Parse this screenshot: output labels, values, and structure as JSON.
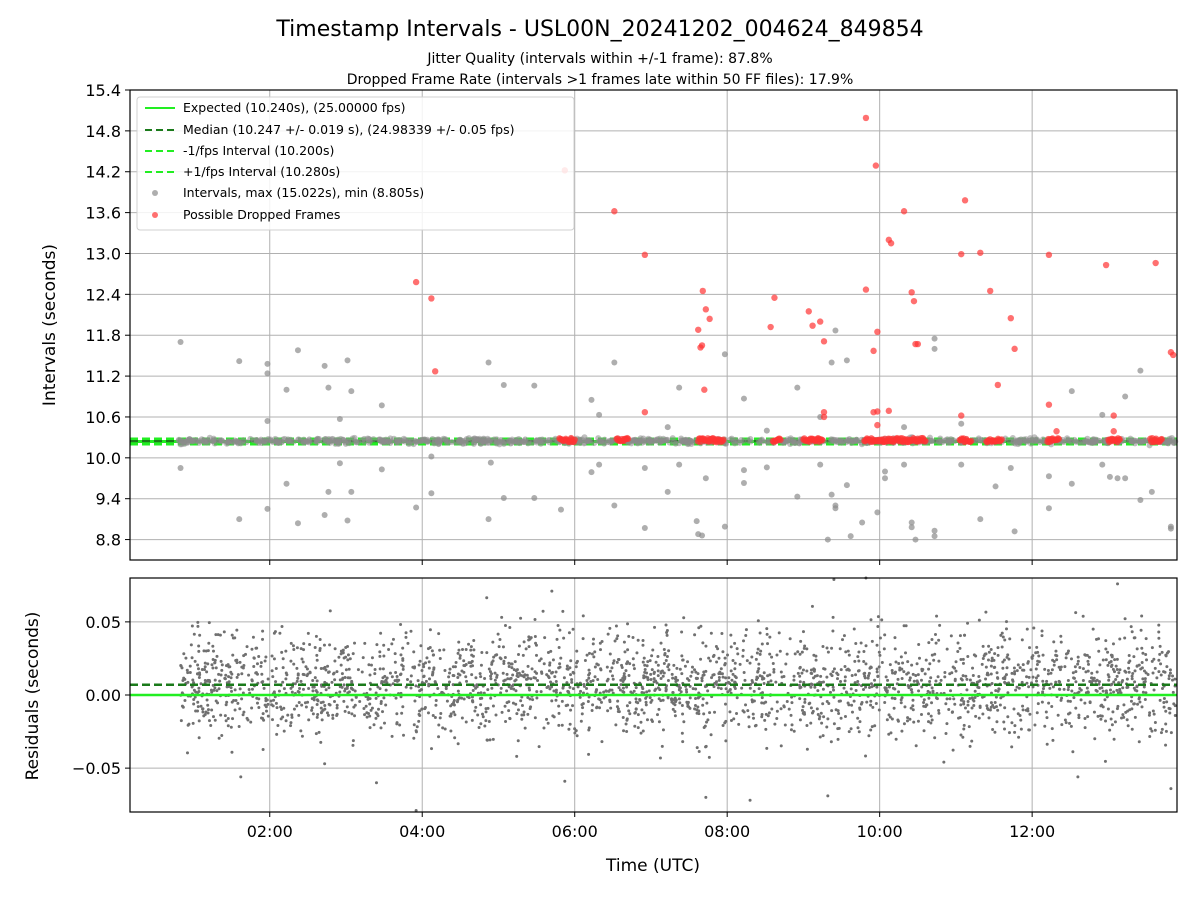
{
  "title": "Timestamp Intervals - USL00N_20241202_004624_849854",
  "subtitle_lines": [
    "Jitter Quality (intervals within +/-1 frame): 87.8%",
    "Dropped Frame Rate (intervals >1 frames late within 50 FF files): 17.9%"
  ],
  "colors": {
    "expected": "#22ee22",
    "median": "#1a7a1a",
    "interval_band": "#22ee22",
    "intervals": "#8c8c8c",
    "dropped": "#ff3333",
    "residuals": "#707070"
  },
  "chart_data": [
    {
      "type": "scatter",
      "name": "intervals",
      "ylabel": "Intervals (seconds)",
      "xlim_hours": [
        0.167,
        13.9
      ],
      "ylim": [
        8.5,
        15.4
      ],
      "yticks": [
        "8.8",
        "9.4",
        "10.0",
        "10.6",
        "11.2",
        "11.8",
        "12.4",
        "13.0",
        "13.6",
        "14.2",
        "14.8",
        "15.4"
      ],
      "ytick_values": [
        8.8,
        9.4,
        10.0,
        10.6,
        11.2,
        11.8,
        12.4,
        13.0,
        13.6,
        14.2,
        14.8,
        15.4
      ],
      "grid": true,
      "legend": "top-left",
      "lines": [
        {
          "name": "Expected (10.240s), (25.00000 fps)",
          "y": 10.24,
          "style": "solid",
          "color_key": "expected"
        },
        {
          "name": "Median (10.247 +/- 0.019 s), (24.98339 +/- 0.05 fps)",
          "y": 10.247,
          "style": "dashed",
          "color_key": "median"
        },
        {
          "name": "-1/fps Interval (10.200s)",
          "y": 10.2,
          "style": "dashed",
          "color_key": "interval_band"
        },
        {
          "name": "+1/fps Interval (10.280s)",
          "y": 10.28,
          "style": "dashed",
          "color_key": "interval_band"
        }
      ],
      "scatter_legend": [
        {
          "name": "Intervals, max (15.022s), min (8.805s)",
          "color_key": "intervals"
        },
        {
          "name": "Possible Dropped Frames",
          "color_key": "dropped"
        }
      ],
      "baseline_cluster": {
        "y": 10.247,
        "spread": 0.04,
        "x_start": 0.8,
        "x_end": 13.88,
        "count": 900
      },
      "dropped_clusters": [
        {
          "x_start": 5.8,
          "x_end": 6.0,
          "y": 10.26
        },
        {
          "x_start": 6.55,
          "x_end": 6.7,
          "y": 10.26
        },
        {
          "x_start": 7.62,
          "x_end": 7.95,
          "y": 10.26
        },
        {
          "x_start": 8.6,
          "x_end": 8.7,
          "y": 10.26
        },
        {
          "x_start": 9.0,
          "x_end": 9.25,
          "y": 10.26
        },
        {
          "x_start": 9.8,
          "x_end": 10.6,
          "y": 10.26
        },
        {
          "x_start": 11.05,
          "x_end": 11.2,
          "y": 10.26
        },
        {
          "x_start": 11.4,
          "x_end": 11.6,
          "y": 10.26
        },
        {
          "x_start": 12.2,
          "x_end": 12.35,
          "y": 10.26
        },
        {
          "x_start": 13.0,
          "x_end": 13.15,
          "y": 10.26
        },
        {
          "x_start": 13.55,
          "x_end": 13.7,
          "y": 10.26
        }
      ],
      "outliers_gray": [
        [
          0.83,
          11.7
        ],
        [
          0.83,
          9.85
        ],
        [
          1.6,
          11.42
        ],
        [
          1.6,
          9.1
        ],
        [
          1.97,
          11.38
        ],
        [
          1.97,
          11.24
        ],
        [
          1.97,
          9.25
        ],
        [
          1.97,
          10.54
        ],
        [
          2.22,
          11.0
        ],
        [
          2.22,
          9.62
        ],
        [
          2.37,
          11.58
        ],
        [
          2.37,
          9.04
        ],
        [
          2.72,
          11.35
        ],
        [
          2.72,
          9.16
        ],
        [
          2.77,
          11.03
        ],
        [
          2.77,
          9.5
        ],
        [
          2.92,
          10.57
        ],
        [
          2.92,
          9.92
        ],
        [
          3.02,
          11.43
        ],
        [
          3.02,
          9.08
        ],
        [
          3.07,
          10.98
        ],
        [
          3.07,
          9.5
        ],
        [
          3.47,
          10.77
        ],
        [
          3.47,
          9.83
        ],
        [
          3.92,
          9.27
        ],
        [
          4.12,
          10.02
        ],
        [
          4.12,
          9.48
        ],
        [
          4.87,
          11.4
        ],
        [
          4.87,
          9.1
        ],
        [
          4.9,
          9.93
        ],
        [
          5.07,
          11.07
        ],
        [
          5.07,
          9.41
        ],
        [
          5.47,
          11.06
        ],
        [
          5.47,
          9.41
        ],
        [
          5.82,
          9.24
        ],
        [
          6.22,
          10.85
        ],
        [
          6.22,
          9.79
        ],
        [
          6.32,
          10.63
        ],
        [
          6.32,
          9.9
        ],
        [
          6.52,
          11.4
        ],
        [
          6.52,
          9.3
        ],
        [
          6.92,
          9.85
        ],
        [
          6.92,
          8.97
        ],
        [
          7.22,
          10.45
        ],
        [
          7.22,
          9.5
        ],
        [
          7.37,
          11.03
        ],
        [
          7.37,
          9.9
        ],
        [
          7.6,
          9.07
        ],
        [
          7.62,
          8.88
        ],
        [
          7.67,
          8.86
        ],
        [
          7.72,
          9.7
        ],
        [
          7.97,
          11.52
        ],
        [
          7.97,
          8.99
        ],
        [
          8.22,
          10.87
        ],
        [
          8.22,
          9.63
        ],
        [
          8.22,
          9.82
        ],
        [
          8.52,
          10.4
        ],
        [
          8.52,
          9.86
        ],
        [
          8.92,
          11.03
        ],
        [
          8.92,
          9.43
        ],
        [
          9.22,
          10.6
        ],
        [
          9.22,
          9.9
        ],
        [
          9.32,
          8.8
        ],
        [
          9.37,
          11.4
        ],
        [
          9.37,
          9.46
        ],
        [
          9.42,
          11.87
        ],
        [
          9.42,
          9.3
        ],
        [
          9.42,
          9.26
        ],
        [
          9.57,
          11.43
        ],
        [
          9.57,
          9.6
        ],
        [
          9.62,
          8.85
        ],
        [
          9.77,
          9.05
        ],
        [
          9.97,
          9.2
        ],
        [
          10.07,
          9.8
        ],
        [
          10.07,
          9.7
        ],
        [
          10.32,
          10.45
        ],
        [
          10.32,
          9.9
        ],
        [
          10.42,
          9.05
        ],
        [
          10.42,
          8.98
        ],
        [
          10.47,
          8.8
        ],
        [
          10.72,
          11.75
        ],
        [
          10.72,
          11.6
        ],
        [
          10.72,
          8.93
        ],
        [
          10.72,
          8.85
        ],
        [
          11.07,
          10.5
        ],
        [
          11.07,
          9.9
        ],
        [
          11.32,
          9.1
        ],
        [
          11.52,
          9.58
        ],
        [
          11.72,
          9.85
        ],
        [
          11.77,
          8.92
        ],
        [
          12.22,
          9.73
        ],
        [
          12.22,
          9.26
        ],
        [
          12.52,
          10.98
        ],
        [
          12.52,
          9.62
        ],
        [
          12.92,
          10.63
        ],
        [
          12.92,
          9.9
        ],
        [
          13.02,
          9.72
        ],
        [
          13.12,
          9.7
        ],
        [
          13.22,
          10.9
        ],
        [
          13.22,
          9.7
        ],
        [
          13.42,
          11.28
        ],
        [
          13.42,
          9.38
        ],
        [
          13.57,
          9.5
        ],
        [
          13.82,
          8.99
        ],
        [
          13.82,
          8.96
        ]
      ],
      "outliers_dropped": [
        [
          3.92,
          12.58
        ],
        [
          4.12,
          12.34
        ],
        [
          4.17,
          11.27
        ],
        [
          5.87,
          14.22
        ],
        [
          6.52,
          13.62
        ],
        [
          6.92,
          12.98
        ],
        [
          6.92,
          10.67
        ],
        [
          7.62,
          11.88
        ],
        [
          7.65,
          11.62
        ],
        [
          7.68,
          12.45
        ],
        [
          7.72,
          12.18
        ],
        [
          7.77,
          12.04
        ],
        [
          7.67,
          11.65
        ],
        [
          7.7,
          11.0
        ],
        [
          8.57,
          11.92
        ],
        [
          8.62,
          12.35
        ],
        [
          9.07,
          12.15
        ],
        [
          9.12,
          11.94
        ],
        [
          9.22,
          12.0
        ],
        [
          9.27,
          11.71
        ],
        [
          9.27,
          10.67
        ],
        [
          9.27,
          10.6
        ],
        [
          9.82,
          14.99
        ],
        [
          9.82,
          12.47
        ],
        [
          9.92,
          11.57
        ],
        [
          9.95,
          14.29
        ],
        [
          9.97,
          11.85
        ],
        [
          9.97,
          10.68
        ],
        [
          9.92,
          10.67
        ],
        [
          9.97,
          10.48
        ],
        [
          10.12,
          13.2
        ],
        [
          10.15,
          13.15
        ],
        [
          10.12,
          10.69
        ],
        [
          10.32,
          13.62
        ],
        [
          10.42,
          12.43
        ],
        [
          10.45,
          12.3
        ],
        [
          10.47,
          11.67
        ],
        [
          10.5,
          11.67
        ],
        [
          11.07,
          12.99
        ],
        [
          11.12,
          13.78
        ],
        [
          11.07,
          10.62
        ],
        [
          11.32,
          13.01
        ],
        [
          11.45,
          12.45
        ],
        [
          11.55,
          11.07
        ],
        [
          11.72,
          12.05
        ],
        [
          11.77,
          11.6
        ],
        [
          12.22,
          12.98
        ],
        [
          12.22,
          10.78
        ],
        [
          12.32,
          10.39
        ],
        [
          12.97,
          12.83
        ],
        [
          13.07,
          10.62
        ],
        [
          13.07,
          10.39
        ],
        [
          13.62,
          12.86
        ],
        [
          13.82,
          11.55
        ],
        [
          13.85,
          11.51
        ]
      ]
    },
    {
      "type": "scatter",
      "name": "residuals",
      "xlabel": "Time (UTC)",
      "ylabel": "Residuals (seconds)",
      "xlim_hours": [
        0.167,
        13.9
      ],
      "ylim": [
        -0.08,
        0.08
      ],
      "yticks": [
        "−0.05",
        "0.00",
        "0.05"
      ],
      "ytick_values": [
        -0.05,
        0.0,
        0.05
      ],
      "xticks": [
        "02:00",
        "04:00",
        "06:00",
        "08:00",
        "10:00",
        "12:00"
      ],
      "xtick_values_hours": [
        2,
        4,
        6,
        8,
        10,
        12
      ],
      "grid": true,
      "lines": [
        {
          "y": 0.0,
          "style": "solid",
          "color_key": "expected"
        },
        {
          "y": 0.007,
          "style": "dashed",
          "color_key": "median"
        }
      ],
      "point_cloud": {
        "x_start": 0.83,
        "x_end": 13.88,
        "count": 2600,
        "center": 0.007,
        "sd": 0.018,
        "range": [
          -0.08,
          0.08
        ]
      },
      "extreme_points": [
        [
          3.4,
          -0.06
        ],
        [
          3.92,
          -0.079
        ],
        [
          5.7,
          0.071
        ],
        [
          5.87,
          -0.059
        ],
        [
          7.72,
          -0.07
        ],
        [
          8.3,
          -0.072
        ],
        [
          9.32,
          -0.069
        ],
        [
          9.4,
          0.079
        ],
        [
          9.82,
          0.08
        ],
        [
          12.6,
          -0.056
        ],
        [
          13.12,
          0.076
        ],
        [
          13.82,
          -0.064
        ],
        [
          1.62,
          -0.056
        ],
        [
          2.72,
          -0.047
        ]
      ]
    }
  ]
}
